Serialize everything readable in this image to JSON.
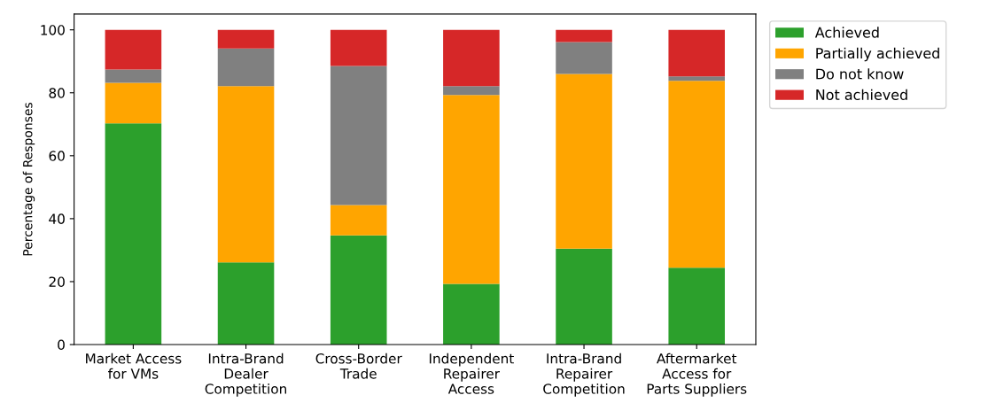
{
  "chart_data": {
    "type": "bar",
    "stacked": true,
    "ylabel": "Percentage of Responses",
    "categories": [
      "Market Access\nfor VMs",
      "Intra-Brand\nDealer\nCompetition",
      "Cross-Border\nTrade",
      "Independent\nRepairer\nAccess",
      "Intra-Brand\nRepairer\nCompetition",
      "Aftermarket\nAccess for\nParts Suppliers"
    ],
    "series": [
      {
        "name": "Achieved",
        "color": "#2ca02c",
        "values": [
          70.3,
          26.1,
          34.7,
          19.3,
          30.5,
          24.4
        ]
      },
      {
        "name": "Partially achieved",
        "color": "#ffa500",
        "values": [
          12.9,
          56.0,
          9.6,
          60.0,
          55.5,
          59.4
        ]
      },
      {
        "name": "Do not know",
        "color": "#808080",
        "values": [
          4.2,
          12.0,
          44.2,
          2.8,
          10.1,
          1.4
        ]
      },
      {
        "name": "Not achieved",
        "color": "#d62728",
        "values": [
          12.6,
          5.9,
          11.5,
          17.9,
          3.9,
          14.8
        ]
      }
    ],
    "ylim": [
      0,
      105
    ],
    "yticks": [
      0,
      20,
      40,
      60,
      80,
      100
    ],
    "grid": false,
    "legend": "top right"
  }
}
